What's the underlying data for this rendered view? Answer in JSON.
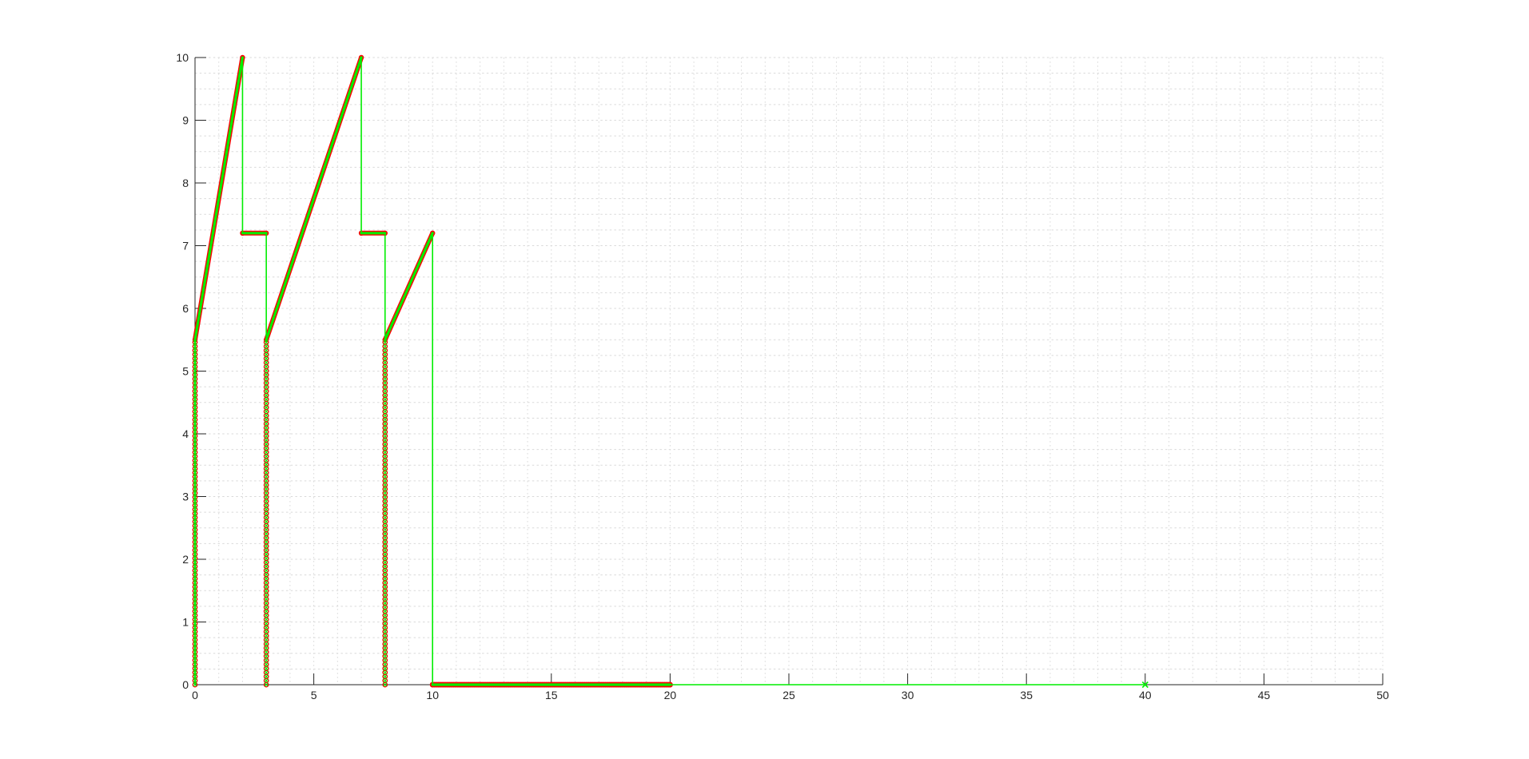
{
  "figure": {
    "background": "#ffffff",
    "axis_color": "#262626",
    "tick_label_color": "#262626"
  },
  "chart_data": {
    "type": "line",
    "title": "",
    "xlabel": "",
    "ylabel": "",
    "xlim": [
      0,
      50
    ],
    "ylim": [
      0,
      10
    ],
    "x_ticks": [
      0,
      5,
      10,
      15,
      20,
      25,
      30,
      35,
      40,
      45,
      50
    ],
    "y_ticks": [
      0,
      1,
      2,
      3,
      4,
      5,
      6,
      7,
      8,
      9,
      10
    ],
    "grid": {
      "shown": true,
      "style": "dashed",
      "color": "#dadada",
      "minor_x_step": 1,
      "minor_y_step": 0.25,
      "legend_shown": false
    },
    "series": [
      {
        "name": "red-circle-marker-series",
        "color": "#ff0000",
        "marker": "o",
        "line_style": "thick",
        "segments": [
          {
            "kind": "marker-column",
            "x": 0,
            "y_from": 0,
            "y_to": 5.5
          },
          {
            "kind": "line",
            "from": [
              0,
              5.5
            ],
            "to": [
              2,
              10
            ]
          },
          {
            "kind": "line",
            "from": [
              2,
              7.2
            ],
            "to": [
              3,
              7.2
            ]
          },
          {
            "kind": "marker-column",
            "x": 3,
            "y_from": 0,
            "y_to": 5.5
          },
          {
            "kind": "line",
            "from": [
              3,
              5.5
            ],
            "to": [
              7,
              10
            ]
          },
          {
            "kind": "line",
            "from": [
              7,
              7.2
            ],
            "to": [
              8,
              7.2
            ]
          },
          {
            "kind": "marker-column",
            "x": 8,
            "y_from": 0,
            "y_to": 5.5
          },
          {
            "kind": "line",
            "from": [
              8,
              5.5
            ],
            "to": [
              10,
              7.2
            ]
          },
          {
            "kind": "marker-line",
            "from": [
              10,
              0
            ],
            "to": [
              20,
              0
            ]
          }
        ]
      },
      {
        "name": "green-line-x-marker-series",
        "color": "#00ee00",
        "marker": "x",
        "line_style": "thin",
        "points": [
          [
            0,
            0
          ],
          [
            0,
            5.5
          ],
          [
            2,
            10
          ],
          [
            2,
            7.2
          ],
          [
            3,
            7.2
          ],
          [
            3,
            5.5
          ],
          [
            7,
            10
          ],
          [
            7,
            7.2
          ],
          [
            8,
            7.2
          ],
          [
            8,
            5.5
          ],
          [
            10,
            7.2
          ],
          [
            10,
            0
          ],
          [
            20,
            0
          ],
          [
            40,
            0
          ]
        ],
        "marker_columns": [
          {
            "x": 0,
            "y_from": 0,
            "y_to": 5.5
          },
          {
            "x": 3,
            "y_from": 0,
            "y_to": 5.5
          },
          {
            "x": 8,
            "y_from": 0,
            "y_to": 5.5
          }
        ],
        "end_marker_point": [
          40,
          0
        ]
      }
    ]
  }
}
